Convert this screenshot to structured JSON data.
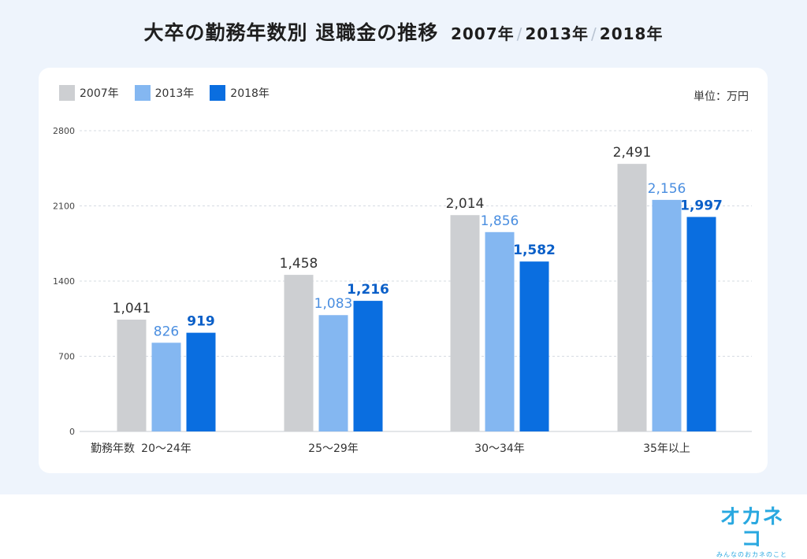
{
  "title": {
    "main": "大卒の勤務年数別 退職金の推移",
    "years": [
      "2007年",
      "2013年",
      "2018年"
    ],
    "sep": "/"
  },
  "unit_label": "単位：万円",
  "axis_caption": "勤務年数",
  "colors": {
    "2007年": "#cdcfd2",
    "2013年": "#84b7f1",
    "2018年": "#0a6ee0",
    "label_2007": "#333333",
    "label_2013": "#4a8ee0",
    "label_2018": "#0a5fc8"
  },
  "logo": {
    "mark": "オカネコ",
    "tagline": "みんなのおカネのこと"
  },
  "chart_data": {
    "type": "bar",
    "title": "大卒の勤務年数別 退職金の推移 2007年 / 2013年 / 2018年",
    "xlabel": "勤務年数",
    "ylabel": "単位：万円",
    "categories": [
      "20〜24年",
      "25〜29年",
      "30〜34年",
      "35年以上"
    ],
    "series": [
      {
        "name": "2007年",
        "values": [
          1041,
          1458,
          2014,
          2491
        ],
        "labels": [
          "1,041",
          "1,458",
          "2,014",
          "2,491"
        ]
      },
      {
        "name": "2013年",
        "values": [
          826,
          1083,
          1856,
          2156
        ],
        "labels": [
          "826",
          "1,083",
          "1,856",
          "2,156"
        ]
      },
      {
        "name": "2018年",
        "values": [
          919,
          1216,
          1582,
          1997
        ],
        "labels": [
          "919",
          "1,216",
          "1,582",
          "1,997"
        ]
      }
    ],
    "yticks": [
      0,
      700,
      1400,
      2100,
      2800
    ],
    "ylim": [
      0,
      2800
    ],
    "grid": true,
    "legend": "top-left"
  }
}
